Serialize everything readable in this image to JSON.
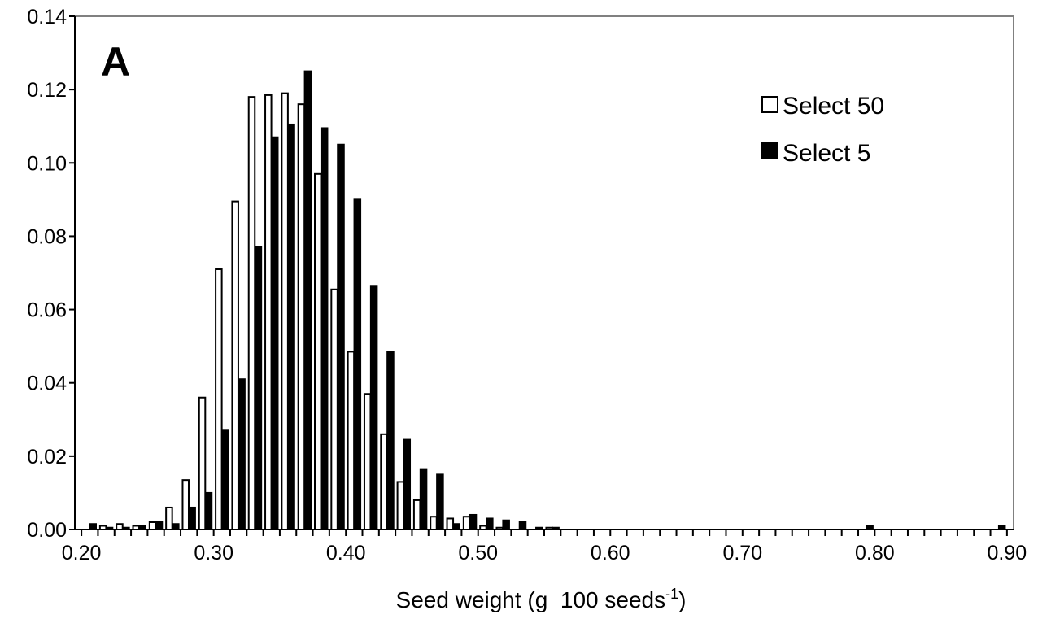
{
  "chart_data": {
    "type": "bar",
    "panel_label": "A",
    "xlabel": "Seed weight (g  100 seeds",
    "xlabel_superscript": "-1",
    "xlabel_suffix": ")",
    "ylabel": "",
    "xlim": [
      0.195,
      0.905
    ],
    "ylim": [
      0,
      0.14
    ],
    "yticks": [
      "0.00",
      "0.02",
      "0.04",
      "0.06",
      "0.08",
      "0.10",
      "0.12",
      "0.14"
    ],
    "xtick_labels": [
      {
        "x": 0.2,
        "label": "0.20"
      },
      {
        "x": 0.3,
        "label": "0.30"
      },
      {
        "x": 0.4,
        "label": "0.40"
      },
      {
        "x": 0.5,
        "label": "0.50"
      },
      {
        "x": 0.6,
        "label": "0.60"
      },
      {
        "x": 0.7,
        "label": "0.70"
      },
      {
        "x": 0.8,
        "label": "0.80"
      },
      {
        "x": 0.9,
        "label": "0.90"
      }
    ],
    "bin_start": 0.2,
    "bin_width": 0.0125,
    "grid": false,
    "legend_position": "top-right",
    "series": [
      {
        "name": "Select 50",
        "fill": "#ffffff",
        "values": [
          0.0,
          0.001,
          0.0015,
          0.001,
          0.002,
          0.006,
          0.0135,
          0.036,
          0.071,
          0.0895,
          0.118,
          0.1185,
          0.119,
          0.116,
          0.097,
          0.0655,
          0.0485,
          0.037,
          0.026,
          0.013,
          0.008,
          0.0035,
          0.003,
          0.0035,
          0.001,
          0.0005,
          0.0,
          0.0,
          0.0005,
          0.0,
          0.0,
          0.0,
          0.0,
          0.0,
          0.0,
          0.0,
          0.0,
          0.0,
          0.0,
          0.0,
          0.0,
          0.0,
          0.0,
          0.0,
          0.0,
          0.0,
          0.0,
          0.0,
          0.0,
          0.0,
          0.0,
          0.0,
          0.0,
          0.0,
          0.0,
          0.0
        ]
      },
      {
        "name": "Select 5",
        "fill": "#000000",
        "values": [
          0.0015,
          0.0005,
          0.0005,
          0.001,
          0.002,
          0.0015,
          0.006,
          0.01,
          0.027,
          0.041,
          0.077,
          0.107,
          0.1105,
          0.125,
          0.1095,
          0.105,
          0.09,
          0.0665,
          0.0485,
          0.0245,
          0.0165,
          0.015,
          0.0015,
          0.004,
          0.003,
          0.0025,
          0.002,
          0.0005,
          0.0005,
          0.0,
          0.0,
          0.0,
          0.0,
          0.0,
          0.0,
          0.0,
          0.0,
          0.0,
          0.0,
          0.0,
          0.0,
          0.0,
          0.0,
          0.0,
          0.0,
          0.0,
          0.0,
          0.001,
          0.0,
          0.0,
          0.0,
          0.0,
          0.0,
          0.0,
          0.0,
          0.001
        ]
      }
    ]
  }
}
